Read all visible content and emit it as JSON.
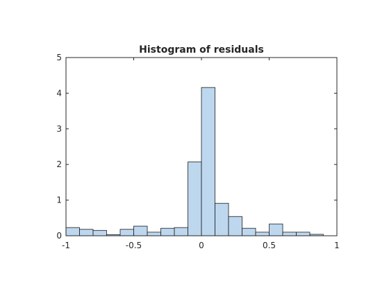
{
  "chart_data": {
    "type": "bar",
    "title": "Histogram of residuals",
    "xlabel": "",
    "ylabel": "",
    "xlim": [
      -1,
      1
    ],
    "ylim": [
      0,
      5
    ],
    "xticks": [
      -1,
      -0.5,
      0,
      0.5,
      1
    ],
    "xtick_labels": [
      "-1",
      "-0.5",
      "0",
      "0.5",
      "1"
    ],
    "yticks": [
      0,
      1,
      2,
      3,
      4,
      5
    ],
    "ytick_labels": [
      "0",
      "1",
      "2",
      "3",
      "4",
      "5"
    ],
    "grid": false,
    "legend": "none",
    "bin_edges": [
      -1.0,
      -0.9,
      -0.8,
      -0.7,
      -0.6,
      -0.5,
      -0.4,
      -0.3,
      -0.2,
      -0.1,
      0.0,
      0.1,
      0.2,
      0.3,
      0.4,
      0.5,
      0.6,
      0.7,
      0.8,
      0.9
    ],
    "values": [
      0.23,
      0.18,
      0.15,
      0.03,
      0.18,
      0.27,
      0.1,
      0.21,
      0.23,
      2.07,
      4.16,
      0.91,
      0.54,
      0.21,
      0.1,
      0.33,
      0.1,
      0.1,
      0.04
    ],
    "bar_color": "#bdd7ee",
    "edge_color": "#1a1a1a"
  }
}
